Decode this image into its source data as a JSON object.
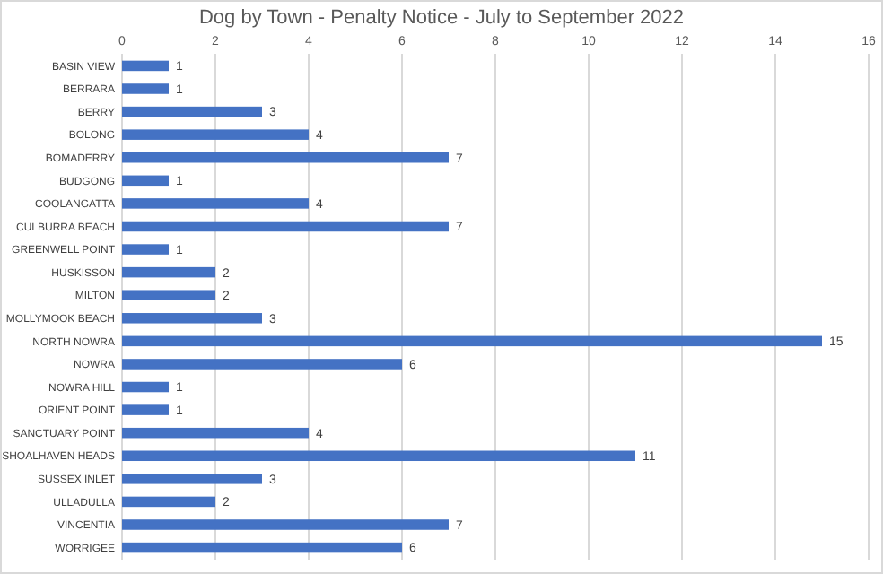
{
  "chart_data": {
    "type": "bar",
    "orientation": "horizontal",
    "title": "Dog by Town - Penalty Notice - July to September 2022",
    "categories": [
      "BASIN VIEW",
      "BERRARA",
      "BERRY",
      "BOLONG",
      "BOMADERRY",
      "BUDGONG",
      "COOLANGATTA",
      "CULBURRA BEACH",
      "GREENWELL POINT",
      "HUSKISSON",
      "MILTON",
      "MOLLYMOOK BEACH",
      "NORTH NOWRA",
      "NOWRA",
      "NOWRA HILL",
      "ORIENT POINT",
      "SANCTUARY POINT",
      "SHOALHAVEN HEADS",
      "SUSSEX INLET",
      "ULLADULLA",
      "VINCENTIA",
      "WORRIGEE"
    ],
    "values": [
      1,
      1,
      3,
      4,
      7,
      1,
      4,
      7,
      1,
      2,
      2,
      3,
      15,
      6,
      1,
      1,
      4,
      11,
      3,
      2,
      7,
      6
    ],
    "color": "#4472c4",
    "xlim": [
      0,
      16
    ],
    "xticks": [
      0,
      2,
      4,
      6,
      8,
      10,
      12,
      14,
      16
    ],
    "grid": "x",
    "data_labels": true
  }
}
